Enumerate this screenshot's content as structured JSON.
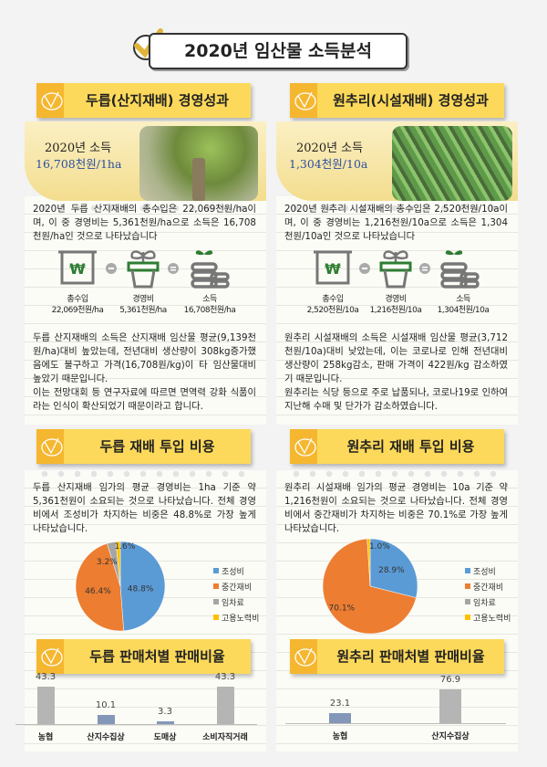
{
  "title": "2020년 임산물 소득분석",
  "colors": {
    "accent": "#fcd95a",
    "blue": "#5b9bd5",
    "orange": "#ed7d31",
    "gray": "#a5a5a5",
    "yellow": "#ffc000",
    "bar_gray": "#b5b5b5",
    "bar_blue": "#8497b9"
  },
  "left": {
    "header": "두릅(산지재배) 경영성과",
    "income_label": "2020년 소득",
    "income_value": "16,708천원/1ha",
    "text1": "2020년 두릅 산지재배의 총수입은 22,069천원/ha이며, 이 중 경영비는 5,361천원/ha으로 소득은 16,708천원/ha인 것으로 나타났습니다",
    "icons": [
      {
        "label": "총수입",
        "value": "22,069천원/ha"
      },
      {
        "label": "경영비",
        "value": "5,361천원/ha"
      },
      {
        "label": "소득",
        "value": "16,708천원/ha"
      }
    ],
    "text2": "두릅 산지재배의 소득은 산지재배 임산물 평균(9,139천원/ha)대비 높았는데, 전년대비 생산량이 308kg증가했음에도 불구하고 가격(16,708원/kg)이 타 임산물대비 높았기 때문입니다.",
    "text3": "이는 전망대회 등 연구자료에 따르면 면역력 강화 식품이라는 인식이 확산되었기 때문이라고 합니다.",
    "cost_header": "두릅 재배 투입 비용",
    "cost_text": "두릅 산지재배 임가의 평균 경영비는 1ha 기준  약 5,361천원이 소요되는 것으로 나타났습니다. 전체 경영비에서 조성비가 차지하는 비중은 48.8%로 가장 높게 나타났습니다.",
    "sales_header": "두릅 판매처별 판매비율"
  },
  "right": {
    "header": "원추리(시설재배) 경영성과",
    "income_label": "2020년 소득",
    "income_value": "1,304천원/10a",
    "text1": "2020년 원추리 시설재배의 총수입은 2,520천원/10a이며, 이 중 경영비는 1,216천원/10a으로 소득은 1,304천원/10a인 것으로 나타났습니다",
    "icons": [
      {
        "label": "총수입",
        "value": "2,520천원/10a"
      },
      {
        "label": "경영비",
        "value": "1,216천원/10a"
      },
      {
        "label": "소득",
        "value": "1,304천원/10a"
      }
    ],
    "text2": "원추리 시설재배의 소득은 시설재배 임산물 평균(3,712천원/10a)대비 낮았는데, 이는 코로나로 인해 전년대비 생산량이 258kg감소, 판매 가격이 422원/kg 감소하였기 때문입니다.",
    "text3": "원추리는 식당 등으로 주로 납품되나, 코로나19로 인하여 지난해 수매 및 단가가 감소하였습니다.",
    "cost_header": "원추리 재배 투입 비용",
    "cost_text": "원추리 시설재배 임가의 평균 경영비는 10a 기준  약 1,216천원이 소요되는 것으로 나타났습니다. 전체 경영비에서 중간재비가 차지하는 비중은 70.1%로 가장 높게 나타났습니다.",
    "sales_header": "원추리 판매처별 판매비율"
  },
  "chart_data": [
    {
      "type": "pie",
      "legend": [
        "조성비",
        "중간재비",
        "임차료",
        "고용노력비"
      ],
      "values": [
        48.8,
        46.4,
        3.2,
        1.6
      ],
      "labels": [
        "48.8%",
        "46.4%",
        "3.2%",
        "1.6%"
      ],
      "legend_position": "right"
    },
    {
      "type": "pie",
      "legend": [
        "조성비",
        "중간재비",
        "임차료",
        "고용노력비"
      ],
      "values": [
        28.9,
        70.1,
        0,
        1.0
      ],
      "labels": [
        "28.9%",
        "70.1%",
        "",
        "1.0%"
      ],
      "legend_position": "right"
    },
    {
      "type": "bar",
      "categories": [
        "농협",
        "산지수집상",
        "도매상",
        "소비자직거래"
      ],
      "values": [
        43.3,
        10.1,
        3.3,
        43.3
      ],
      "labels": [
        "43.3",
        "10.1",
        "3.3",
        "43.3"
      ]
    },
    {
      "type": "bar",
      "categories": [
        "농협",
        "산지수집상"
      ],
      "values": [
        23.1,
        76.9
      ],
      "labels": [
        "23.1",
        "76.9"
      ]
    }
  ]
}
